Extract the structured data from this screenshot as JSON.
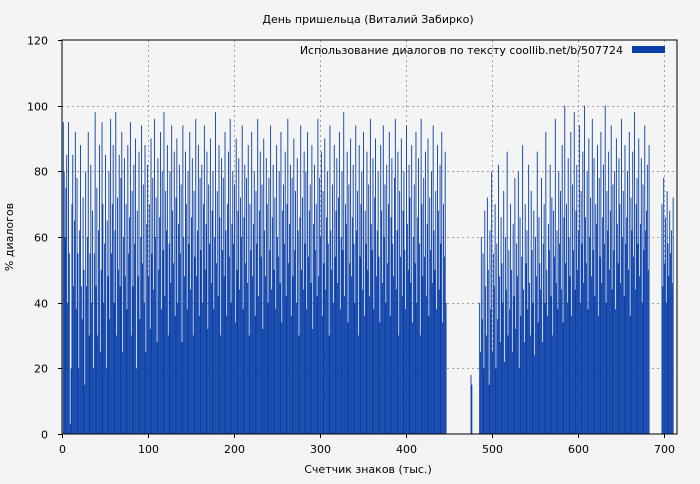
{
  "chart_data": {
    "type": "bar",
    "title": "День пришельца (Виталий Забирко)",
    "xlabel": "Счетчик знаков (тыс.)",
    "ylabel": "% диалогов",
    "xlim": [
      0,
      715
    ],
    "ylim": [
      0,
      120
    ],
    "xticks": [
      0,
      100,
      200,
      300,
      400,
      500,
      600,
      700
    ],
    "yticks": [
      0,
      20,
      40,
      60,
      80,
      100,
      120
    ],
    "grid": true,
    "legend_position": "top-right",
    "series": [
      {
        "name": "Использование диалогов по тексту  coollib.net/b/507724",
        "color": "#0a3fa8",
        "bin_width_kchars": 1,
        "values": [
          0,
          95,
          80,
          60,
          75,
          85,
          40,
          95,
          55,
          3,
          20,
          70,
          85,
          45,
          65,
          92,
          38,
          78,
          55,
          20,
          62,
          88,
          45,
          35,
          72,
          50,
          15,
          80,
          45,
          60,
          92,
          30,
          55,
          82,
          40,
          68,
          20,
          55,
          98,
          45,
          75,
          30,
          62,
          88,
          25,
          50,
          95,
          70,
          40,
          58,
          85,
          20,
          65,
          48,
          80,
          35,
          96,
          55,
          70,
          88,
          40,
          62,
          98,
          30,
          72,
          50,
          85,
          45,
          78,
          92,
          25,
          60,
          84,
          48,
          70,
          38,
          88,
          55,
          66,
          95,
          30,
          74,
          45,
          82,
          58,
          90,
          20,
          68,
          48,
          86,
          35,
          60,
          94,
          52,
          76,
          40,
          88,
          25,
          64,
          82,
          48,
          70,
          32,
          90,
          55,
          78,
          44,
          96,
          60,
          72,
          28,
          84,
          50,
          66,
          92,
          38,
          80,
          56,
          98,
          42,
          74,
          62,
          88,
          30,
          58,
          80,
          46,
          94,
          68,
          52,
          86,
          36,
          72,
          90,
          40,
          64,
          82,
          55,
          76,
          28,
          94,
          60,
          48,
          86,
          70,
          38,
          80,
          58,
          92,
          44,
          66,
          84,
          30,
          74,
          54,
          96,
          48,
          62,
          88,
          36,
          78,
          56,
          82,
          40,
          70,
          94,
          50,
          64,
          86,
          32,
          76,
          58,
          90,
          46,
          68,
          80,
          38,
          60,
          98,
          52,
          74,
          42,
          88,
          66,
          30,
          84,
          56,
          78,
          48,
          92,
          62,
          36,
          70,
          86,
          54,
          96,
          40,
          64,
          80,
          58,
          76,
          34,
          90,
          50,
          68,
          84,
          44,
          72,
          60,
          94,
          38,
          66,
          82,
          52,
          78,
          46,
          88,
          30,
          70,
          56,
          92,
          48,
          64,
          80,
          36,
          74,
          58,
          96,
          42,
          68,
          86,
          54,
          76,
          32,
          90,
          62,
          48,
          84,
          70,
          40,
          78,
          56,
          94,
          44,
          66,
          82,
          50,
          72,
          38,
          88,
          60,
          54,
          80,
          46,
          92,
          34,
          68,
          76,
          58,
          86,
          42,
          70,
          96,
          52,
          64,
          82,
          36,
          78,
          48,
          90,
          56,
          74,
          40,
          84,
          62,
          30,
          66,
          94,
          50,
          72,
          44,
          86,
          58,
          80,
          38,
          92,
          54,
          68,
          76,
          46,
          88,
          32,
          64,
          82,
          56,
          70,
          42,
          96,
          48,
          78,
          60,
          86,
          36,
          74,
          52,
          90,
          44,
          66,
          80,
          58,
          30,
          94,
          62,
          50,
          76,
          40,
          88,
          54,
          68,
          84,
          46,
          72,
          92,
          38,
          60,
          80,
          56,
          98,
          42,
          70,
          64,
          86,
          34,
          76,
          52,
          90,
          48,
          66,
          82,
          58,
          40,
          94,
          62,
          74,
          30,
          88,
          54,
          70,
          80,
          44,
          92,
          36,
          68,
          58,
          86,
          50,
          76,
          42,
          96,
          64,
          56,
          84,
          38,
          72,
          90,
          48,
          62,
          80,
          54,
          34,
          88,
          68,
          46,
          94,
          60,
          76,
          40,
          82,
          52,
          70,
          92,
          36,
          66,
          84,
          58,
          48,
          78,
          96,
          44,
          62,
          86,
          30,
          74,
          54,
          90,
          42,
          68,
          80,
          56,
          38,
          94,
          64,
          50,
          82,
          72,
          46,
          88,
          34,
          60,
          76,
          52,
          92,
          40,
          66,
          84,
          58,
          30,
          96,
          70,
          48,
          78,
          54,
          86,
          42,
          64,
          90,
          36,
          72,
          56,
          80,
          46,
          94,
          62,
          50,
          74,
          38,
          88,
          68,
          44,
          82,
          58,
          92,
          34,
          70,
          54,
          86,
          40,
          0,
          0,
          0,
          0,
          0,
          0,
          0,
          0,
          0,
          0,
          0,
          0,
          0,
          0,
          0,
          0,
          0,
          0,
          0,
          0,
          0,
          0,
          0,
          0,
          0,
          0,
          0,
          0,
          18,
          15,
          0,
          0,
          0,
          0,
          0,
          0,
          0,
          0,
          40,
          25,
          60,
          35,
          55,
          20,
          68,
          45,
          30,
          72,
          50,
          15,
          62,
          38,
          80,
          25,
          55,
          45,
          70,
          20,
          58,
          35,
          82,
          48,
          28,
          66,
          52,
          40,
          74,
          22,
          60,
          44,
          86,
          30,
          56,
          38,
          70,
          50,
          25,
          64,
          42,
          78,
          32,
          58,
          48,
          80,
          20,
          66,
          36,
          54,
          88,
          44,
          28,
          70,
          52,
          62,
          38,
          82,
          46,
          30,
          74,
          56,
          40,
          68,
          24,
          60,
          48,
          86,
          34,
          66,
          52,
          44,
          78,
          28,
          58,
          70,
          40,
          92,
          50,
          36,
          64,
          56,
          82,
          42,
          72,
          30,
          68,
          54,
          96,
          46,
          62,
          38,
          80,
          58,
          74,
          44,
          88,
          34,
          66,
          100,
          52,
          70,
          40,
          84,
          60,
          48,
          92,
          36,
          76,
          56,
          98,
          44,
          68,
          82,
          50,
          62,
          94,
          40,
          74,
          58,
          86,
          46,
          100,
          66,
          52,
          80,
          38,
          90,
          60,
          72,
          48,
          96,
          56,
          84,
          42,
          70,
          64,
          88,
          36,
          78,
          54,
          92,
          46,
          66,
          82,
          58,
          100,
          40,
          74,
          62,
          86,
          50,
          68,
          94,
          44,
          76,
          56,
          80,
          38,
          90,
          64,
          52,
          84,
          70,
          46,
          96,
          60,
          74,
          42,
          88,
          58,
          66,
          80,
          50,
          92,
          36,
          72,
          62,
          86,
          54,
          98,
          44,
          70,
          78,
          58,
          90,
          48,
          64,
          84,
          40,
          76,
          56,
          94,
          62,
          68,
          82,
          50,
          88,
          0,
          0,
          0,
          0,
          0,
          0,
          0,
          0,
          0,
          0,
          0,
          0,
          0,
          0,
          70,
          45,
          78,
          52,
          66,
          40,
          74,
          58,
          48,
          68,
          55,
          62,
          46,
          72,
          0,
          0
        ]
      }
    ]
  }
}
